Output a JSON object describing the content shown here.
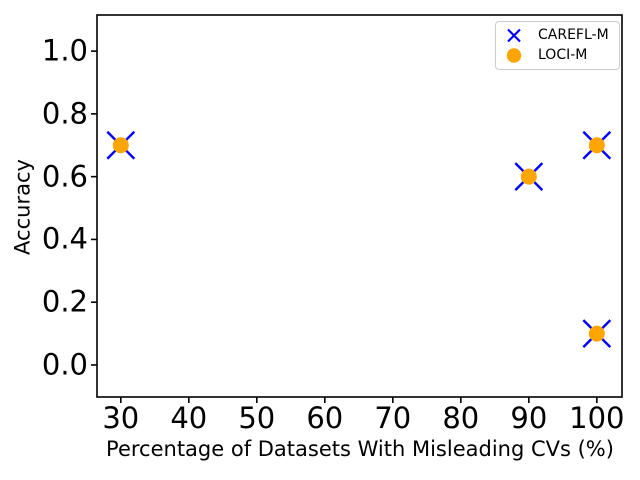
{
  "figure": {
    "background": "#ffffff",
    "axis_color": "#000000",
    "text_color": "#000000"
  },
  "chart_data": {
    "type": "scatter",
    "title": "",
    "xlabel": "Percentage of Datasets With Misleading CVs (%)",
    "ylabel": "Accuracy",
    "xlim": [
      26.5,
      103.7
    ],
    "ylim": [
      -0.102,
      1.115
    ],
    "xticks": [
      30,
      40,
      50,
      60,
      70,
      80,
      90,
      100
    ],
    "xtick_labels": [
      "30",
      "40",
      "50",
      "60",
      "70",
      "80",
      "90",
      "100"
    ],
    "yticks": [
      0.0,
      0.2,
      0.4,
      0.6,
      0.8,
      1.0
    ],
    "ytick_labels": [
      "0.0",
      "0.2",
      "0.4",
      "0.6",
      "0.8",
      "1.0"
    ],
    "grid": false,
    "legend_position": "upper right",
    "series": [
      {
        "name": "CAREFL-M",
        "marker": "x",
        "color": "#0000ff",
        "x": [
          30,
          90,
          100,
          100
        ],
        "y": [
          0.7,
          0.6,
          0.7,
          0.1
        ]
      },
      {
        "name": "LOCI-M",
        "marker": "circle",
        "color": "#ffa500",
        "x": [
          30,
          90,
          100,
          100
        ],
        "y": [
          0.7,
          0.6,
          0.7,
          0.1
        ]
      }
    ]
  }
}
